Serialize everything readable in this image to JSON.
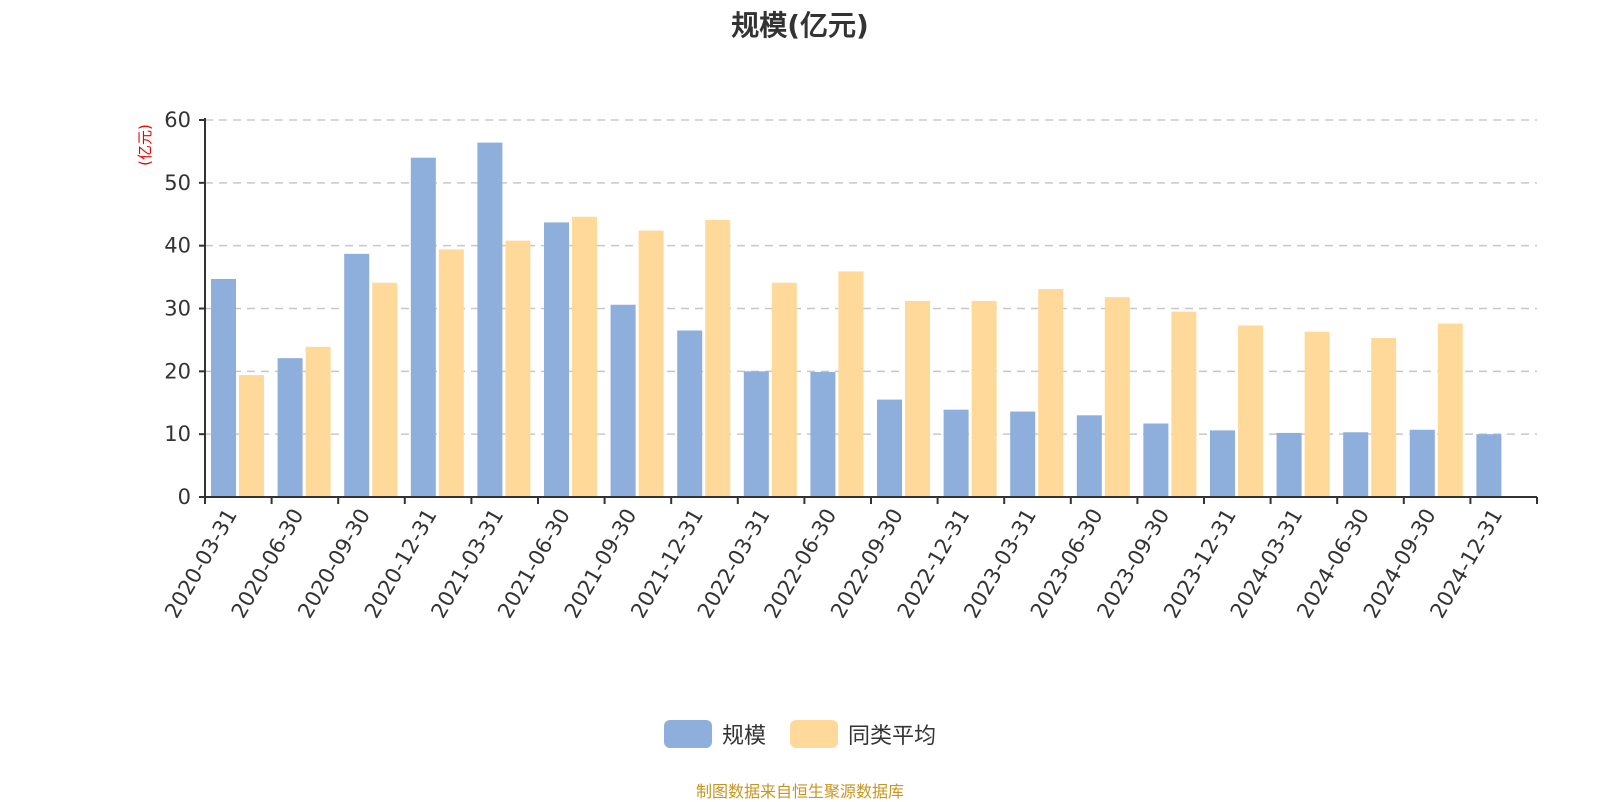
{
  "chart_data": {
    "type": "bar",
    "title": "规模(亿元)",
    "ylabel": "(亿元)",
    "xlabel": "",
    "ylim": [
      0,
      60
    ],
    "yticks": [
      0,
      10,
      20,
      30,
      40,
      50,
      60
    ],
    "grid": true,
    "legend_position": "bottom",
    "categories": [
      "2020-03-31",
      "2020-06-30",
      "2020-09-30",
      "2020-12-31",
      "2021-03-31",
      "2021-06-30",
      "2021-09-30",
      "2021-12-31",
      "2022-03-31",
      "2022-06-30",
      "2022-09-30",
      "2022-12-31",
      "2023-03-31",
      "2023-06-30",
      "2023-09-30",
      "2023-12-31",
      "2024-03-31",
      "2024-06-30",
      "2024-09-30",
      "2024-12-31"
    ],
    "series": [
      {
        "name": "规模",
        "color": "#8eaedb",
        "values": [
          34.7,
          22.1,
          38.7,
          54.0,
          56.4,
          43.7,
          30.6,
          26.5,
          20.0,
          19.9,
          15.5,
          13.9,
          13.6,
          13.0,
          11.7,
          10.6,
          10.2,
          10.3,
          10.7,
          10.0
        ]
      },
      {
        "name": "同类平均",
        "color": "#ffd99a",
        "values": [
          19.4,
          23.9,
          34.1,
          39.4,
          40.8,
          44.6,
          42.4,
          44.1,
          34.1,
          35.9,
          31.2,
          31.2,
          33.1,
          31.8,
          29.5,
          27.3,
          26.3,
          25.3,
          27.6,
          null
        ]
      }
    ]
  },
  "footer": "制图数据来自恒生聚源数据库"
}
